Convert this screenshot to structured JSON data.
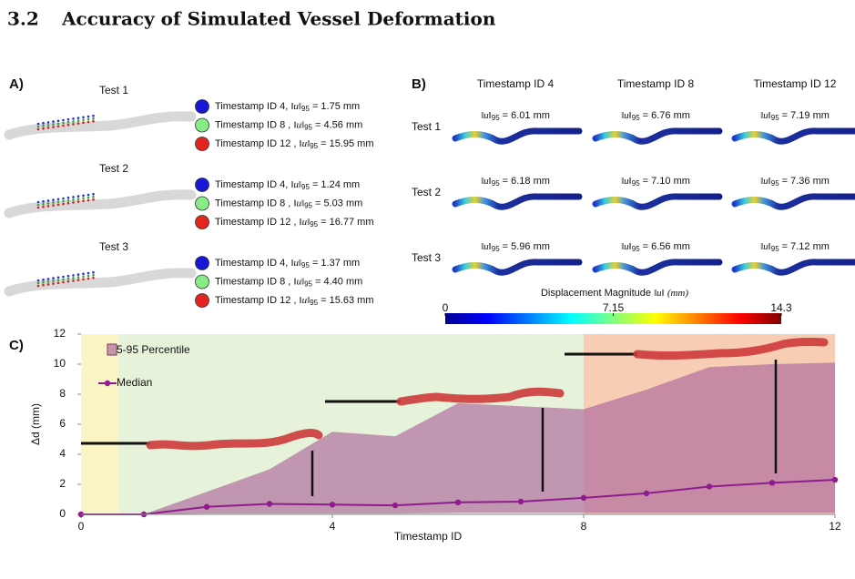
{
  "header": {
    "number": "3.2",
    "title": "Accuracy of Simulated Vessel Deformation"
  },
  "norm": "‖u‖",
  "norm_sub": "95",
  "panel_a": {
    "label": "A)",
    "entry_colors": [
      "#1717d6",
      "#86ec86",
      "#e3241f"
    ],
    "tests": [
      {
        "name": "Test 1",
        "entries": [
          {
            "label": "Timestamp ID 4,",
            "value": "= 1.75 mm"
          },
          {
            "label": "Timestamp ID 8 ,",
            "value": "= 4.56 mm"
          },
          {
            "label": "Timestamp ID 12 ,",
            "value": "= 15.95 mm"
          }
        ]
      },
      {
        "name": "Test 2",
        "entries": [
          {
            "label": "Timestamp ID 4,",
            "value": "= 1.24 mm"
          },
          {
            "label": "Timestamp ID 8 ,",
            "value": "= 5.03 mm"
          },
          {
            "label": "Timestamp ID 12 ,",
            "value": "= 16.77 mm"
          }
        ]
      },
      {
        "name": "Test 3",
        "entries": [
          {
            "label": "Timestamp ID 4,",
            "value": "= 1.37 mm"
          },
          {
            "label": "Timestamp ID 8 ,",
            "value": "= 4.40 mm"
          },
          {
            "label": "Timestamp ID 12 ,",
            "value": "= 15.63 mm"
          }
        ]
      }
    ]
  },
  "panel_b": {
    "label": "B)",
    "columns": [
      "Timestamp ID 4",
      "Timestamp ID 8",
      "Timestamp ID 12"
    ],
    "rows": [
      {
        "name": "Test 1",
        "cells": [
          "= 6.01 mm",
          "= 6.76 mm",
          "= 7.19 mm"
        ]
      },
      {
        "name": "Test 2",
        "cells": [
          "= 6.18 mm",
          "= 7.10 mm",
          "= 7.36 mm"
        ]
      },
      {
        "name": "Test 3",
        "cells": [
          "= 5.96 mm",
          "= 6.56 mm",
          "= 7.12 mm"
        ]
      }
    ],
    "colorbar": {
      "title": "Displacement Magnitude",
      "unit": "(mm)",
      "lim": [
        0,
        14.3
      ],
      "ticks": [
        0,
        7.15,
        14.3
      ]
    }
  },
  "chart_data": {
    "type": "line",
    "label": "C)",
    "xlabel": "Timestamp ID",
    "ylabel": "Δd (mm)",
    "x": [
      0,
      1,
      2,
      3,
      4,
      5,
      6,
      7,
      8,
      9,
      10,
      11,
      12
    ],
    "xlim": [
      0,
      12
    ],
    "xticks": [
      0,
      4,
      8,
      12
    ],
    "ylim": [
      0,
      12
    ],
    "yticks": [
      0,
      2,
      4,
      6,
      8,
      10,
      12
    ],
    "regions": [
      {
        "x0": 0,
        "x1": 0.6,
        "color": "#fbf5c6"
      },
      {
        "x0": 0.6,
        "x1": 8,
        "color": "#e6f3da"
      },
      {
        "x0": 8,
        "x1": 12,
        "color": "#f7cdb4"
      }
    ],
    "series": [
      {
        "name": "5-95 Percentile",
        "color": "#b06e9e",
        "high": [
          0,
          0,
          1.5,
          3.0,
          5.5,
          5.2,
          7.4,
          7.2,
          7.0,
          8.3,
          9.8,
          10.0,
          10.1
        ],
        "low": [
          0,
          0,
          0.05,
          0.05,
          0.05,
          0.05,
          0.1,
          0.1,
          0.1,
          0.1,
          0.1,
          0.1,
          0.1
        ]
      },
      {
        "name": "Median",
        "color": "#8e1c8e",
        "values": [
          0,
          0,
          0.5,
          0.7,
          0.65,
          0.6,
          0.8,
          0.85,
          1.1,
          1.4,
          1.85,
          2.1,
          2.3
        ]
      }
    ]
  }
}
